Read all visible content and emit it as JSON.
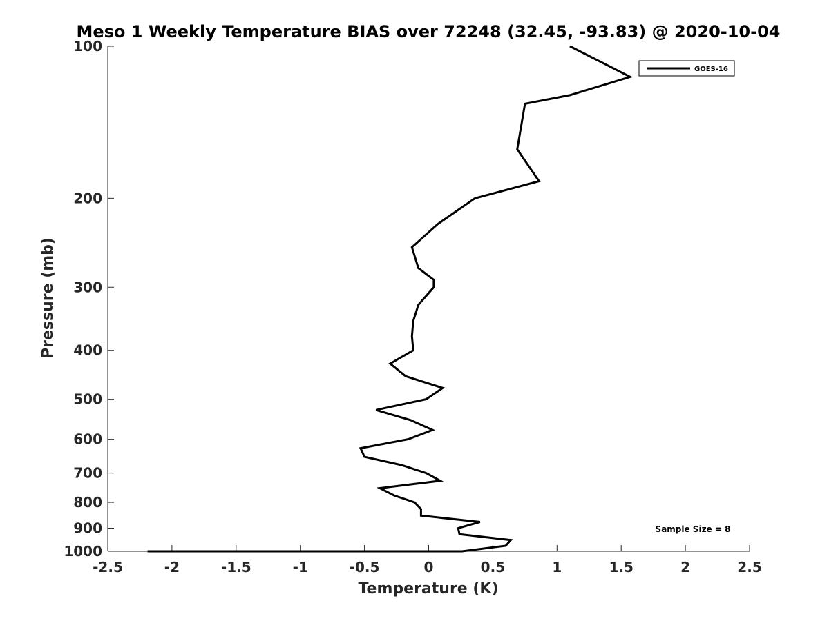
{
  "chart_data": {
    "type": "line",
    "title": "Meso 1 Weekly Temperature BIAS over 72248 (32.45, -93.83) @ 2020-10-04",
    "xlabel": "Temperature (K)",
    "ylabel": "Pressure (mb)",
    "xlim": [
      -2.5,
      2.5
    ],
    "ylim": [
      1000,
      100
    ],
    "y_scale": "log",
    "y_reversed": true,
    "x_ticks": [
      "-2.5",
      "-2",
      "-1.5",
      "-1",
      "-0.5",
      "0",
      "0.5",
      "1",
      "1.5",
      "2",
      "2.5"
    ],
    "y_ticks": [
      "100",
      "200",
      "300",
      "400",
      "500",
      "600",
      "700",
      "800",
      "900",
      "1000"
    ],
    "grid": false,
    "legend_position": "top-right",
    "series": [
      {
        "name": "GOES-16",
        "color": "#000000",
        "points": [
          {
            "x": 1.1,
            "y": 100
          },
          {
            "x": 1.57,
            "y": 115
          },
          {
            "x": 1.1,
            "y": 125
          },
          {
            "x": 0.75,
            "y": 130
          },
          {
            "x": 0.69,
            "y": 160
          },
          {
            "x": 0.86,
            "y": 185
          },
          {
            "x": 0.36,
            "y": 200
          },
          {
            "x": 0.07,
            "y": 225
          },
          {
            "x": -0.13,
            "y": 250
          },
          {
            "x": -0.08,
            "y": 275
          },
          {
            "x": 0.04,
            "y": 290
          },
          {
            "x": 0.04,
            "y": 300
          },
          {
            "x": -0.08,
            "y": 325
          },
          {
            "x": -0.12,
            "y": 350
          },
          {
            "x": -0.13,
            "y": 375
          },
          {
            "x": -0.12,
            "y": 400
          },
          {
            "x": -0.3,
            "y": 425
          },
          {
            "x": -0.18,
            "y": 450
          },
          {
            "x": 0.11,
            "y": 475
          },
          {
            "x": -0.02,
            "y": 500
          },
          {
            "x": -0.41,
            "y": 525
          },
          {
            "x": -0.14,
            "y": 550
          },
          {
            "x": 0.03,
            "y": 575
          },
          {
            "x": -0.16,
            "y": 600
          },
          {
            "x": -0.53,
            "y": 625
          },
          {
            "x": -0.5,
            "y": 650
          },
          {
            "x": -0.21,
            "y": 675
          },
          {
            "x": -0.02,
            "y": 700
          },
          {
            "x": 0.09,
            "y": 725
          },
          {
            "x": -0.38,
            "y": 750
          },
          {
            "x": -0.27,
            "y": 775
          },
          {
            "x": -0.11,
            "y": 800
          },
          {
            "x": -0.06,
            "y": 825
          },
          {
            "x": -0.06,
            "y": 850
          },
          {
            "x": 0.4,
            "y": 875
          },
          {
            "x": 0.23,
            "y": 900
          },
          {
            "x": 0.24,
            "y": 925
          },
          {
            "x": 0.64,
            "y": 950
          },
          {
            "x": 0.6,
            "y": 975
          },
          {
            "x": 0.26,
            "y": 1000
          },
          {
            "x": 0.07,
            "y": 1025
          },
          {
            "x": -0.4,
            "y": 1050
          },
          {
            "x": -1.6,
            "y": 1075
          },
          {
            "x": -2.19,
            "y": 1100
          },
          {
            "x": -1.9,
            "y": 1110
          }
        ]
      }
    ],
    "annotations": [
      "Sample Size = 8"
    ]
  }
}
